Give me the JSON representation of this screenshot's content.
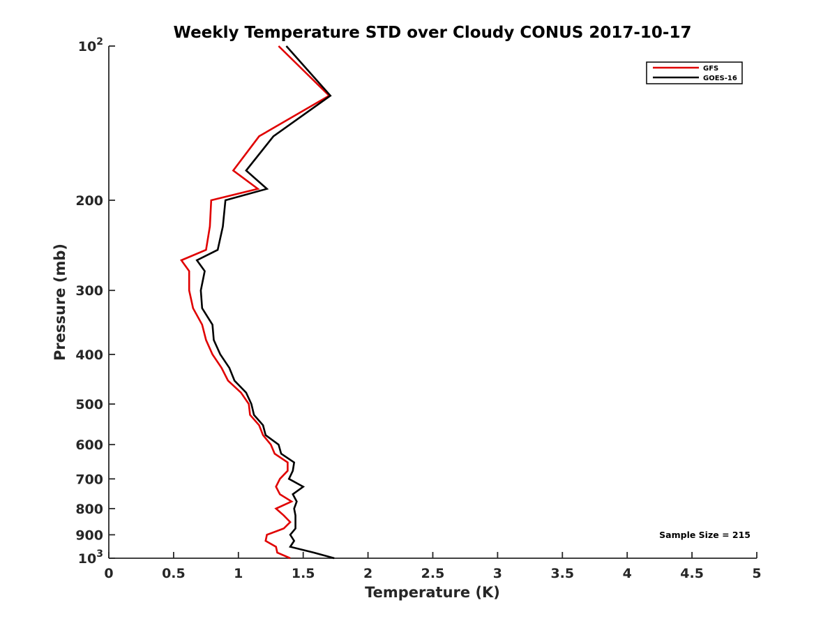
{
  "chart_data": {
    "type": "line",
    "title": "Weekly Temperature STD over Cloudy CONUS 2017-10-17",
    "xlabel": "Temperature (K)",
    "ylabel": "Pressure (mb)",
    "xlim": [
      0,
      5
    ],
    "ylim": [
      100,
      1000
    ],
    "yscale": "log",
    "yreversed": true,
    "x_ticks": [
      0,
      0.5,
      1,
      1.5,
      2,
      2.5,
      3,
      3.5,
      4,
      4.5,
      5
    ],
    "x_tick_labels": [
      "0",
      "0.5",
      "1",
      "1.5",
      "2",
      "2.5",
      "3",
      "3.5",
      "4",
      "4.5",
      "5"
    ],
    "y_ticks": [
      {
        "value": 100,
        "base": "10",
        "exp": "2"
      },
      {
        "value": 200,
        "label": "200"
      },
      {
        "value": 300,
        "label": "300"
      },
      {
        "value": 400,
        "label": "400"
      },
      {
        "value": 500,
        "label": "500"
      },
      {
        "value": 600,
        "label": "600"
      },
      {
        "value": 700,
        "label": "700"
      },
      {
        "value": 800,
        "label": "800"
      },
      {
        "value": 900,
        "label": "900"
      },
      {
        "value": 1000,
        "base": "10",
        "exp": "3"
      }
    ],
    "legend_position": "top-right",
    "annotation": "Sample Size = 215",
    "series": [
      {
        "name": "GFS",
        "color": "#e00000",
        "points": [
          [
            1.31,
            100
          ],
          [
            1.7,
            125
          ],
          [
            1.16,
            150
          ],
          [
            0.96,
            175
          ],
          [
            1.15,
            190
          ],
          [
            0.79,
            200
          ],
          [
            0.78,
            225
          ],
          [
            0.75,
            250
          ],
          [
            0.56,
            262
          ],
          [
            0.62,
            275
          ],
          [
            0.62,
            300
          ],
          [
            0.65,
            325
          ],
          [
            0.72,
            350
          ],
          [
            0.75,
            375
          ],
          [
            0.8,
            400
          ],
          [
            0.87,
            425
          ],
          [
            0.92,
            450
          ],
          [
            1.02,
            475
          ],
          [
            1.08,
            500
          ],
          [
            1.09,
            525
          ],
          [
            1.16,
            550
          ],
          [
            1.19,
            575
          ],
          [
            1.25,
            600
          ],
          [
            1.28,
            625
          ],
          [
            1.38,
            650
          ],
          [
            1.38,
            675
          ],
          [
            1.32,
            700
          ],
          [
            1.29,
            725
          ],
          [
            1.32,
            750
          ],
          [
            1.41,
            775
          ],
          [
            1.29,
            800
          ],
          [
            1.35,
            825
          ],
          [
            1.4,
            850
          ],
          [
            1.35,
            875
          ],
          [
            1.22,
            900
          ],
          [
            1.21,
            925
          ],
          [
            1.29,
            950
          ],
          [
            1.3,
            975
          ],
          [
            1.4,
            1000
          ]
        ]
      },
      {
        "name": "GOES-16",
        "color": "#000000",
        "points": [
          [
            1.37,
            100
          ],
          [
            1.71,
            125
          ],
          [
            1.27,
            150
          ],
          [
            1.06,
            175
          ],
          [
            1.22,
            190
          ],
          [
            0.9,
            200
          ],
          [
            0.88,
            225
          ],
          [
            0.84,
            250
          ],
          [
            0.68,
            262
          ],
          [
            0.74,
            275
          ],
          [
            0.71,
            300
          ],
          [
            0.72,
            325
          ],
          [
            0.8,
            350
          ],
          [
            0.81,
            375
          ],
          [
            0.86,
            400
          ],
          [
            0.93,
            425
          ],
          [
            0.97,
            450
          ],
          [
            1.06,
            475
          ],
          [
            1.1,
            500
          ],
          [
            1.12,
            525
          ],
          [
            1.19,
            550
          ],
          [
            1.21,
            575
          ],
          [
            1.31,
            600
          ],
          [
            1.33,
            625
          ],
          [
            1.43,
            650
          ],
          [
            1.42,
            675
          ],
          [
            1.39,
            700
          ],
          [
            1.5,
            725
          ],
          [
            1.42,
            750
          ],
          [
            1.45,
            775
          ],
          [
            1.43,
            800
          ],
          [
            1.44,
            825
          ],
          [
            1.44,
            850
          ],
          [
            1.44,
            875
          ],
          [
            1.4,
            900
          ],
          [
            1.43,
            925
          ],
          [
            1.4,
            950
          ],
          [
            1.58,
            975
          ],
          [
            1.74,
            1000
          ]
        ]
      }
    ]
  }
}
